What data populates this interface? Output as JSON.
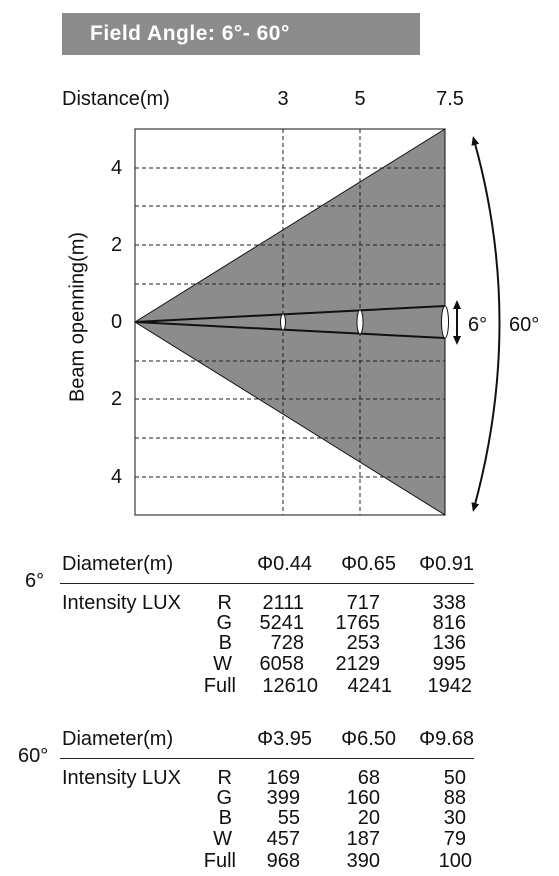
{
  "banner": {
    "title": "Field Angle: 6°- 60°"
  },
  "axis": {
    "distance_label": "Distance(m)",
    "distance_ticks": [
      "3",
      "5",
      "7.5"
    ],
    "beam_label": "Beam openning(m)",
    "beam_ticks": [
      "4",
      "2",
      "0",
      "2",
      "4"
    ],
    "narrow_angle": "6°",
    "wide_angle": "60°"
  },
  "colors": {
    "wide_beam": "#8c8c8c",
    "banner": "#8c8c8c",
    "line": "#111111"
  },
  "tables": [
    {
      "angle": "6°",
      "diameter_label": "Diameter(m)",
      "diameters": [
        "Φ0.44",
        "Φ0.65",
        "Φ0.91"
      ],
      "intensity_label": "Intensity LUX",
      "rows": [
        {
          "channel": "R",
          "values": [
            "2111",
            "717",
            "338"
          ]
        },
        {
          "channel": "G",
          "values": [
            "5241",
            "1765",
            "816"
          ]
        },
        {
          "channel": "B",
          "values": [
            "728",
            "253",
            "136"
          ]
        },
        {
          "channel": "W",
          "values": [
            "6058",
            "2129",
            "995"
          ]
        },
        {
          "channel": "Full",
          "values": [
            "12610",
            "4241",
            "1942"
          ]
        }
      ]
    },
    {
      "angle": "60°",
      "diameter_label": "Diameter(m)",
      "diameters": [
        "Φ3.95",
        "Φ6.50",
        "Φ9.68"
      ],
      "intensity_label": "Intensity LUX",
      "rows": [
        {
          "channel": "R",
          "values": [
            "169",
            "68",
            "50"
          ]
        },
        {
          "channel": "G",
          "values": [
            "399",
            "160",
            "88"
          ]
        },
        {
          "channel": "B",
          "values": [
            "55",
            "20",
            "30"
          ]
        },
        {
          "channel": "W",
          "values": [
            "457",
            "187",
            "79"
          ]
        },
        {
          "channel": "Full",
          "values": [
            "968",
            "390",
            "100"
          ]
        }
      ]
    }
  ]
}
